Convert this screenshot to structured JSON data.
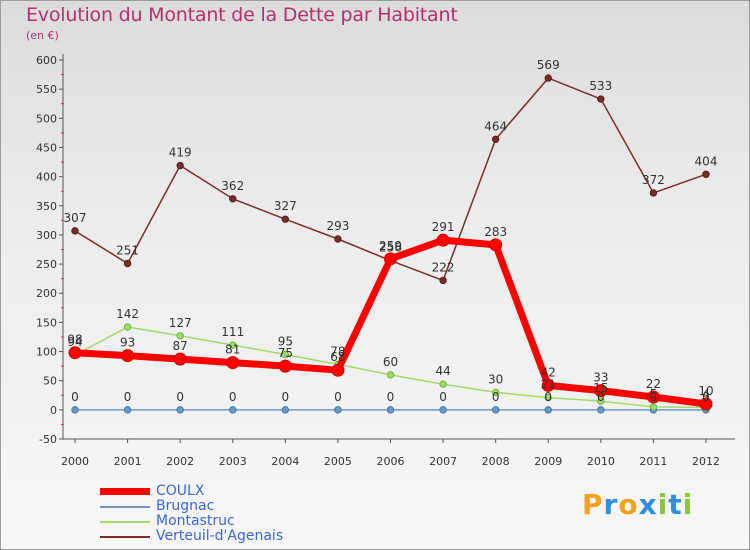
{
  "title": "Evolution du Montant de la Dette par Habitant",
  "subtitle": "(en €)",
  "logo": {
    "letters": [
      "P",
      "r",
      "o",
      "x",
      "i",
      "t",
      "i"
    ],
    "colors": [
      "#f2a31b",
      "#2f8fd8",
      "#f2a31b",
      "#2f8fd8",
      "#8bc53f",
      "#2f8fd8",
      "#8bc53f"
    ]
  },
  "chart_data": {
    "type": "line",
    "x": [
      "2000",
      "2001",
      "2002",
      "2003",
      "2004",
      "2005",
      "2006",
      "2007",
      "2008",
      "2009",
      "2010",
      "2011",
      "2012"
    ],
    "ylim": [
      -50,
      600
    ],
    "yticks": [
      "-50",
      "0",
      "50",
      "100",
      "150",
      "200",
      "250",
      "300",
      "350",
      "400",
      "450",
      "500",
      "550",
      "600"
    ],
    "grid": false,
    "legend_position": "bottom-left",
    "series": [
      {
        "name": "COULX",
        "color": "#ff0000",
        "values": [
          98,
          93,
          87,
          81,
          75,
          68,
          259,
          291,
          283,
          42,
          33,
          22,
          10
        ],
        "labels": [
          "98",
          "93",
          "87",
          "81",
          "75",
          "68",
          "259",
          "291",
          "283",
          "42",
          "33",
          "22",
          "10"
        ]
      },
      {
        "name": "Brugnac",
        "color": "#6a9ac5",
        "values": [
          0,
          0,
          0,
          0,
          0,
          0,
          0,
          0,
          0,
          0,
          0,
          0,
          0
        ],
        "labels": [
          "0",
          "0",
          "0",
          "0",
          "0",
          "0",
          "0",
          "0",
          "0",
          "0",
          "0",
          "0",
          "0"
        ]
      },
      {
        "name": "Montastruc",
        "color": "#a3da6c",
        "values": [
          94,
          142,
          127,
          111,
          95,
          78,
          60,
          44,
          30,
          21,
          15,
          5,
          4
        ],
        "labels": [
          "94",
          "142",
          "127",
          "111",
          "95",
          "78",
          "60",
          "44",
          "30",
          "21",
          "15",
          "5",
          "4"
        ]
      },
      {
        "name": "Verteuil-d'Agenais",
        "color": "#7a2c2c",
        "values": [
          307,
          251,
          419,
          362,
          327,
          293,
          256,
          222,
          464,
          569,
          533,
          372,
          404
        ],
        "labels": [
          "307",
          "251",
          "419",
          "362",
          "327",
          "293",
          "256",
          "222",
          "464",
          "569",
          "533",
          "372",
          "404"
        ]
      }
    ]
  }
}
